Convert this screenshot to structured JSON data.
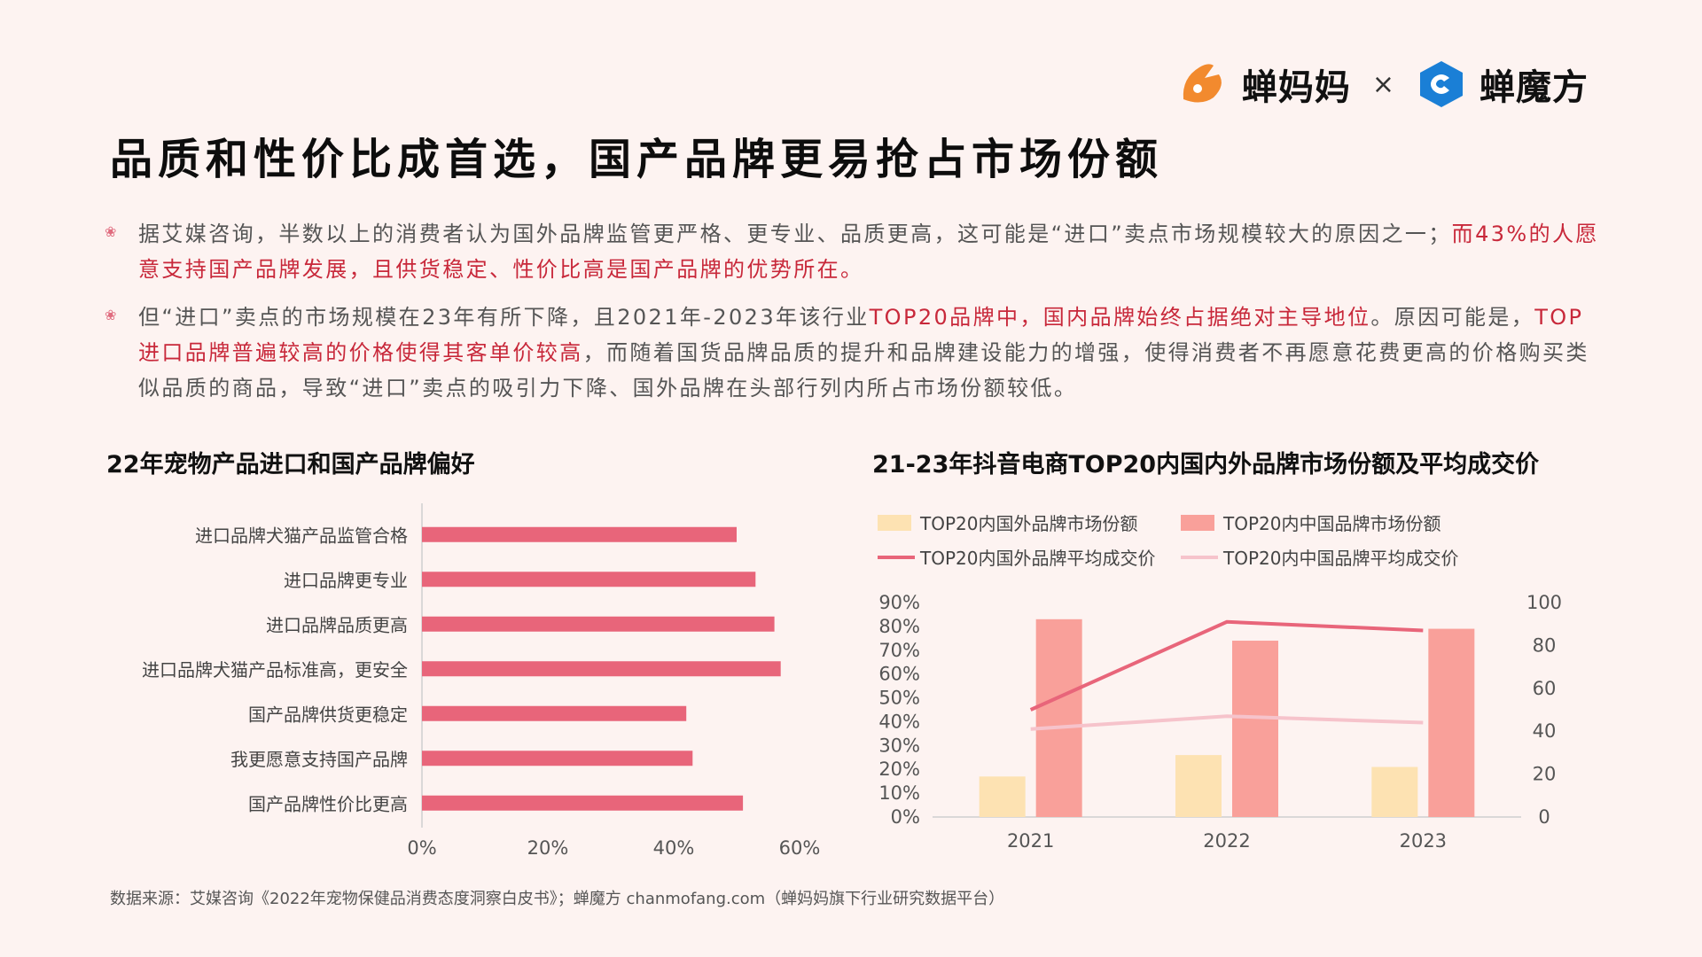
{
  "brand": {
    "logo1_text": "蝉妈妈",
    "times": "×",
    "logo2_text": "蝉魔方",
    "accent": "#f28a2e",
    "accent2": "#1a7fd6"
  },
  "title": "品质和性价比成首选，国产品牌更易抢占市场份额",
  "bullets": [
    {
      "parts": [
        {
          "text": "据艾媒咨询，半数以上的消费者认为国外品牌监管更严格、更专业、品质更高，这可能是“进口”卖点市场规模较大的原因之一；",
          "hl": false
        },
        {
          "text": "而43%的人愿意支持国产品牌发展，且供货稳定、性价比高是国产品牌的优势所在。",
          "hl": true
        }
      ]
    },
    {
      "parts": [
        {
          "text": "但“进口”卖点的市场规模在23年有所下降，且2021年-2023年该行业",
          "hl": false
        },
        {
          "text": "TOP20品牌中，国内品牌始终占据绝对主导地位",
          "hl": true
        },
        {
          "text": "。原因可能是，",
          "hl": false
        },
        {
          "text": "TOP进口品牌普遍较高的价格使得其客单价较高",
          "hl": true
        },
        {
          "text": "，而随着国货品牌品质的提升和品牌建设能力的增强，使得消费者不再愿意花费更高的价格购买类似品质的商品，导致“进口”卖点的吸引力下降、国外品牌在头部行列内所占市场份额较低。",
          "hl": false
        }
      ]
    }
  ],
  "chart_data": [
    {
      "type": "bar",
      "orientation": "horizontal",
      "title": "22年宠物产品进口和国产品牌偏好",
      "categories": [
        "进口品牌犬猫产品监管合格",
        "进口品牌更专业",
        "进口品牌品质更高",
        "进口品牌犬猫产品标准高，更安全",
        "国产品牌供货更稳定",
        "我更愿意支持国产品牌",
        "国产品牌性价比更高"
      ],
      "values": [
        50,
        53,
        56,
        57,
        42,
        43,
        51
      ],
      "x_ticks": [
        "0%",
        "20%",
        "40%",
        "60%"
      ],
      "xlim": [
        0,
        60
      ],
      "color": "#e8657a"
    },
    {
      "type": "bar+line",
      "title": "21-23年抖音电商TOP20内国内外品牌市场份额及平均成交价",
      "categories": [
        "2021",
        "2022",
        "2023"
      ],
      "series": [
        {
          "name": "TOP20内国外品牌市场份额",
          "type": "bar",
          "axis": "left",
          "values": [
            17,
            26,
            21
          ],
          "color": "#fde2b2"
        },
        {
          "name": "TOP20内中国品牌市场份额",
          "type": "bar",
          "axis": "left",
          "values": [
            83,
            74,
            79
          ],
          "color": "#f9a09a"
        },
        {
          "name": "TOP20内国外品牌平均成交价",
          "type": "line",
          "axis": "right",
          "values": [
            50,
            91,
            87
          ],
          "color": "#e8657a"
        },
        {
          "name": "TOP20内中国品牌平均成交价",
          "type": "line",
          "axis": "right",
          "values": [
            41,
            47,
            44
          ],
          "color": "#f6c3cb"
        }
      ],
      "y_left_ticks": [
        "0%",
        "10%",
        "20%",
        "30%",
        "40%",
        "50%",
        "60%",
        "70%",
        "80%",
        "90%"
      ],
      "y_left_lim": [
        0,
        90
      ],
      "y_right_ticks": [
        "0",
        "20",
        "40",
        "60",
        "80",
        "100"
      ],
      "y_right_lim": [
        0,
        100
      ],
      "legend": "top"
    }
  ],
  "source": "数据来源：艾媒咨询《2022年宠物保健品消费态度洞察白皮书》；蝉魔方  chanmofang.com（蝉妈妈旗下行业研究数据平台）"
}
